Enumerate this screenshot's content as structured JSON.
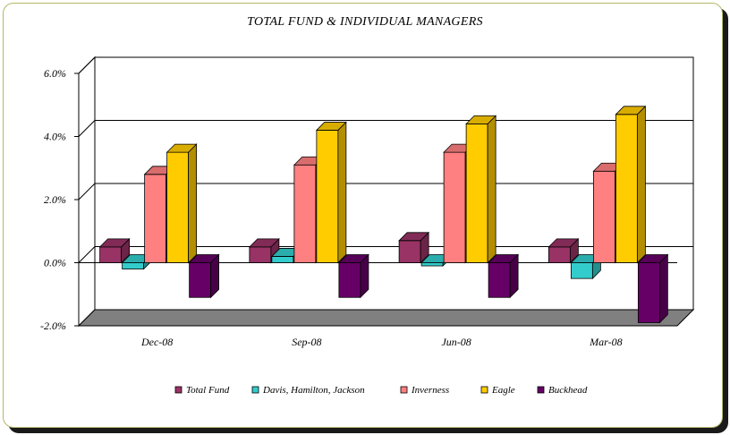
{
  "chart_data": {
    "type": "bar",
    "title": "TOTAL FUND  & INDIVIDUAL MANAGERS",
    "categories": [
      "Dec-08",
      "Sep-08",
      "Jun-08",
      "Mar-08"
    ],
    "series": [
      {
        "name": "Total Fund",
        "values": [
          0.5,
          0.5,
          0.7,
          0.5
        ],
        "color": "#993366"
      },
      {
        "name": "Davis, Hamilton, Jackson",
        "values": [
          -0.2,
          0.2,
          -0.1,
          -0.5
        ],
        "color": "#33CCCC"
      },
      {
        "name": "Inverness",
        "values": [
          2.8,
          3.1,
          3.5,
          2.9
        ],
        "color": "#FF8080"
      },
      {
        "name": "Eagle",
        "values": [
          3.5,
          4.2,
          4.4,
          4.7
        ],
        "color": "#FFCC00"
      },
      {
        "name": "Buckhead",
        "values": [
          -1.1,
          -1.1,
          -1.1,
          -1.9
        ],
        "color": "#660066"
      }
    ],
    "yticks": [
      "6.0%",
      "4.0%",
      "2.0%",
      "0.0%",
      "-2.0%"
    ],
    "ylim": [
      -2,
      6
    ],
    "xlabel": "",
    "ylabel": "",
    "grid": true,
    "legend": "bottom"
  }
}
